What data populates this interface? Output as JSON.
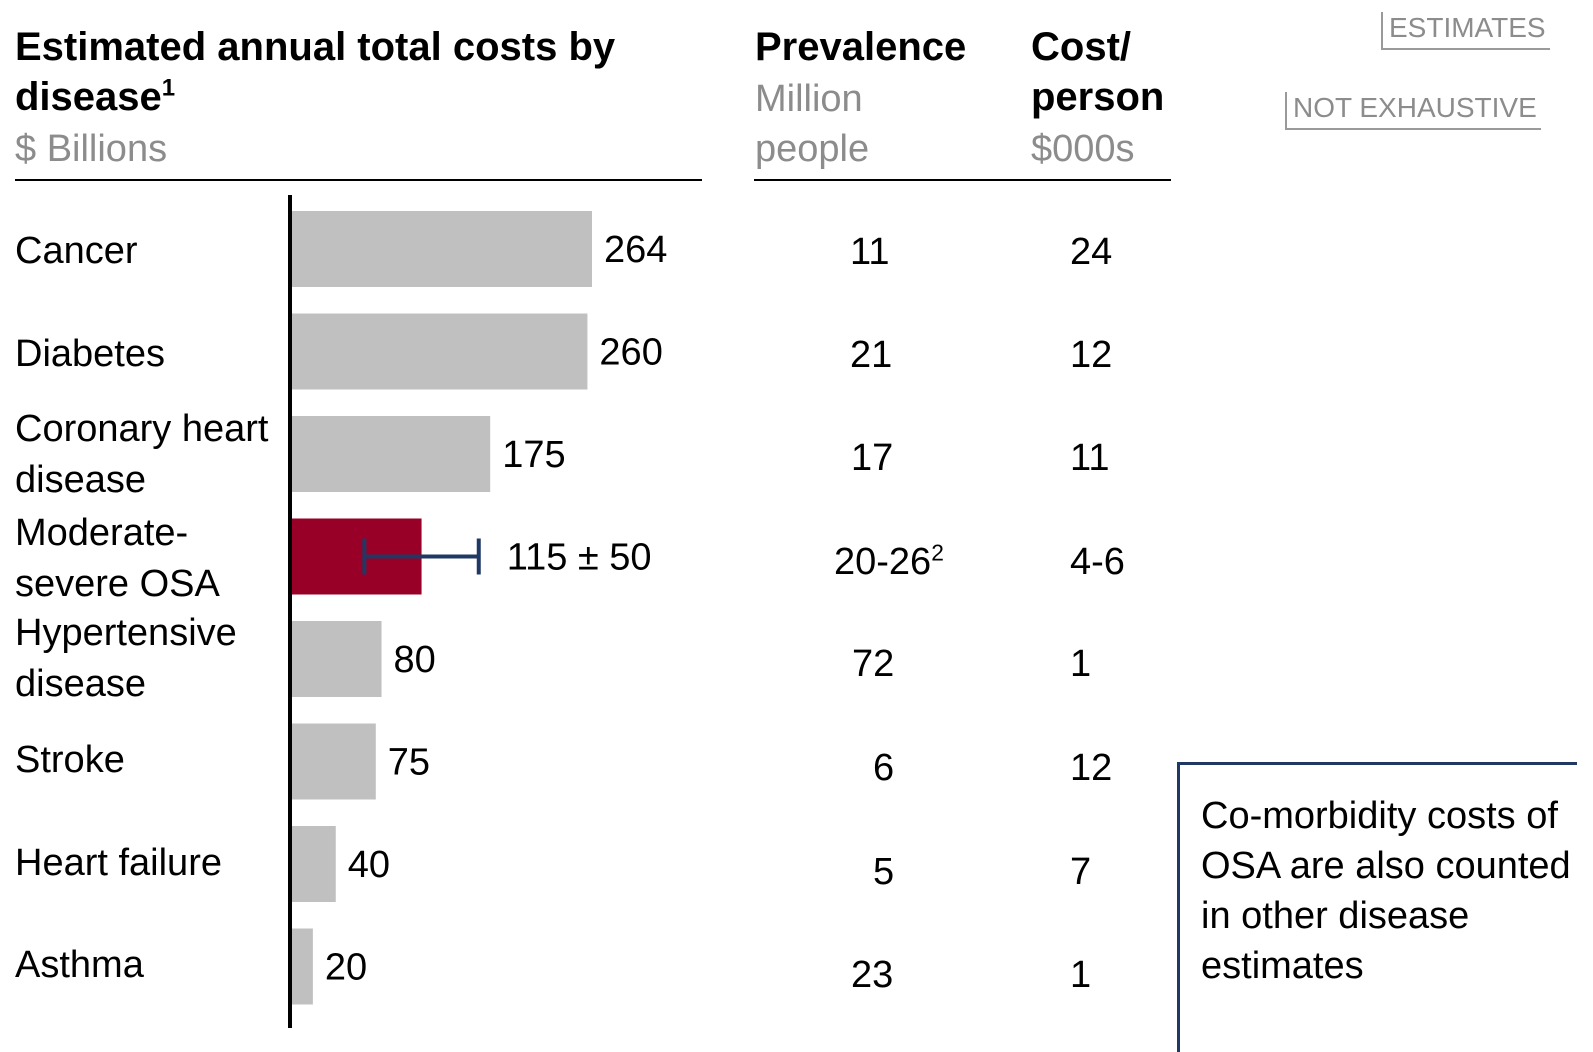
{
  "chart_data": {
    "type": "bar",
    "orientation": "horizontal",
    "title": "Estimated annual total costs by disease",
    "title_footnote": "1",
    "unit": "$ Billions",
    "categories": [
      "Cancer",
      "Diabetes",
      "Coronary heart disease",
      "Moderate-severe OSA",
      "Hypertensive disease",
      "Stroke",
      "Heart failure",
      "Asthma"
    ],
    "values": [
      264,
      260,
      175,
      115,
      80,
      75,
      40,
      20
    ],
    "error": [
      null,
      null,
      null,
      50,
      null,
      null,
      null,
      null
    ],
    "value_labels": [
      "264",
      "260",
      "175",
      "115 ± 50",
      "80",
      "75",
      "40",
      "20"
    ],
    "highlight_index": 3,
    "bar_color": "#c0c0c0",
    "highlight_color": "#990028",
    "error_bar_color": "#1f3864",
    "xlim": [
      0,
      280
    ]
  },
  "labels": {
    "row0": "Cancer",
    "row1": "Diabetes",
    "row2": "Coronary heart disease",
    "row3": "Moderate-severe OSA",
    "row4": "Hypertensive disease",
    "row5": "Stroke",
    "row6": "Heart failure",
    "row7": "Asthma"
  },
  "prevalence": {
    "title": "Prevalence",
    "unit": "Million people",
    "values": [
      "11",
      "21",
      "17",
      "20-26",
      "72",
      "6",
      "5",
      "23"
    ],
    "osa_footnote": "2"
  },
  "cost_per_person": {
    "title": "Cost/ person",
    "unit": "$000s",
    "values": [
      "24",
      "12",
      "11",
      "4-6",
      "1",
      "12",
      "7",
      "1"
    ]
  },
  "tags": {
    "estimates": "ESTIMATES",
    "not_exhaustive": "NOT EXHAUSTIVE"
  },
  "note": "Co-morbidity costs of OSA are also counted in other disease estimates"
}
